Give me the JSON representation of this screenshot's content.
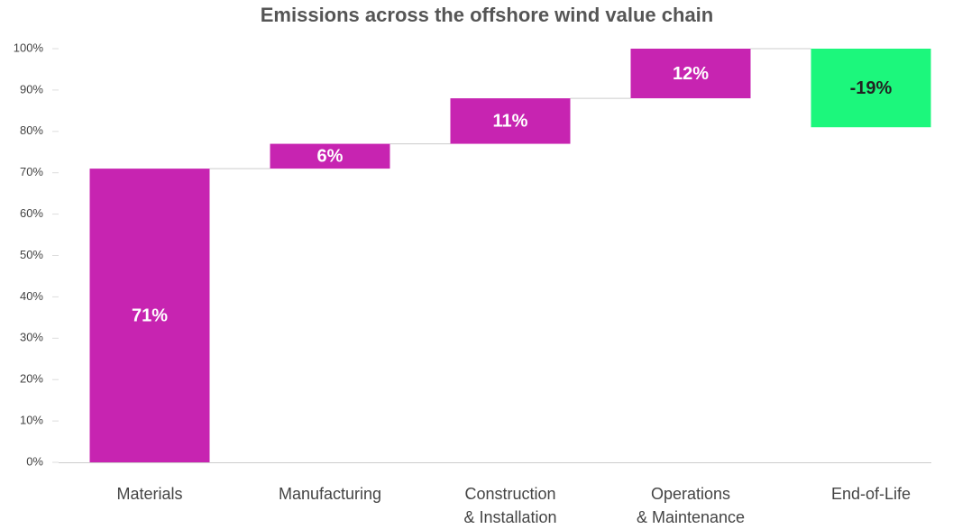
{
  "chart_data": {
    "type": "waterfall",
    "title": "Emissions across the offshore wind value chain",
    "categories": [
      "Materials",
      "Manufacturing",
      "Construction\n& Installation",
      "Operations\n& Maintenance",
      "End-of-Life"
    ],
    "values": [
      71,
      6,
      11,
      12,
      -19
    ],
    "value_labels": [
      "71%",
      "6%",
      "11%",
      "12%",
      "-19%"
    ],
    "increase_color": "#c724b1",
    "decrease_color": "#1cf77c",
    "ylim": [
      0,
      100
    ],
    "yticks": [
      {
        "value": 0,
        "label": "0%"
      },
      {
        "value": 10,
        "label": "10%"
      },
      {
        "value": 20,
        "label": "20%"
      },
      {
        "value": 30,
        "label": "30%"
      },
      {
        "value": 40,
        "label": "40%"
      },
      {
        "value": 50,
        "label": "50%"
      },
      {
        "value": 60,
        "label": "60%"
      },
      {
        "value": 70,
        "label": "70%"
      },
      {
        "value": 80,
        "label": "80%"
      },
      {
        "value": 90,
        "label": "90%"
      },
      {
        "value": 100,
        "label": "100%"
      }
    ],
    "grid": false
  }
}
